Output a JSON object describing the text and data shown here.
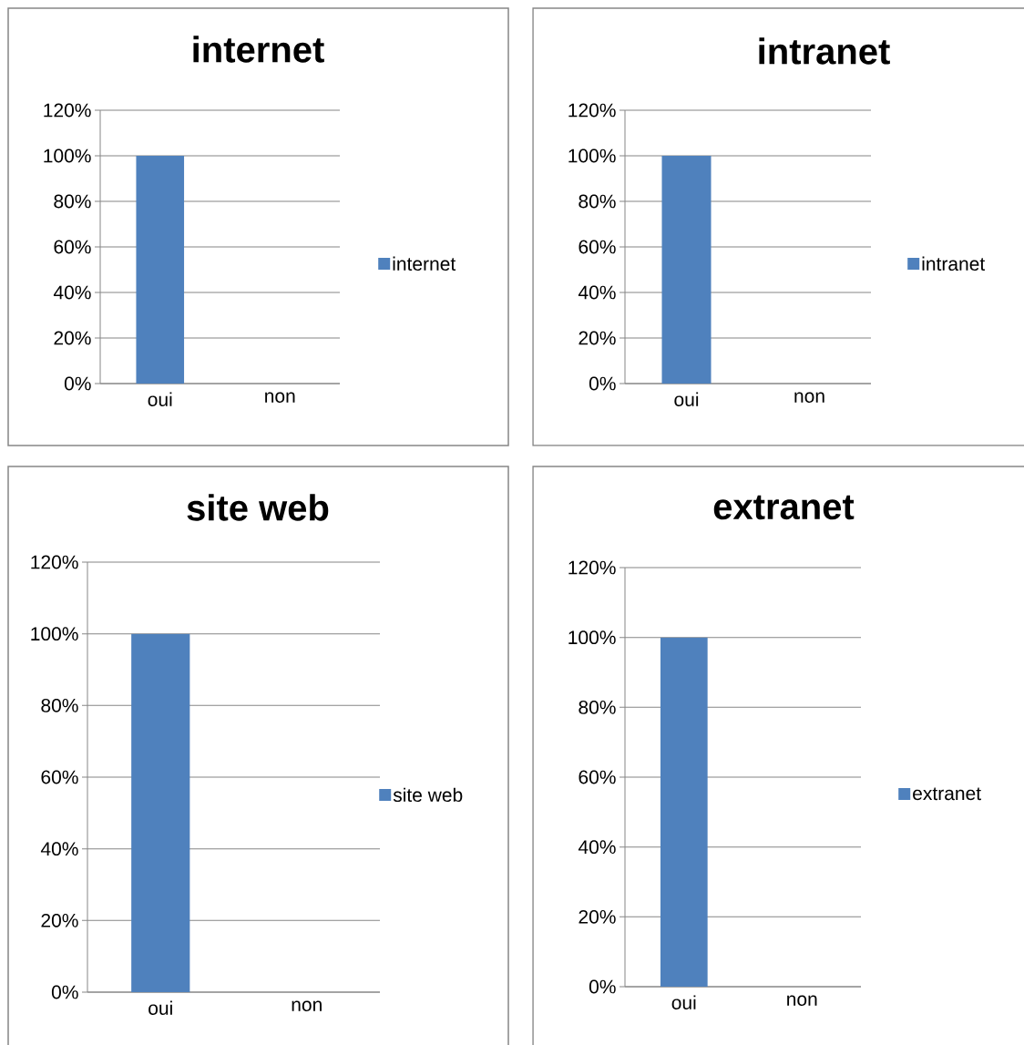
{
  "chart_data": [
    {
      "type": "bar",
      "title": "internet",
      "categories": [
        "oui",
        "non"
      ],
      "series": [
        {
          "name": "internet",
          "color": "#4f81bd",
          "values": [
            100,
            0
          ]
        }
      ],
      "ylim": [
        0,
        120
      ],
      "yticks": [
        {
          "value": 0,
          "label": "0%"
        },
        {
          "value": 20,
          "label": "20%"
        },
        {
          "value": 40,
          "label": "40%"
        },
        {
          "value": 60,
          "label": "60%"
        },
        {
          "value": 80,
          "label": "80%"
        },
        {
          "value": 100,
          "label": "100%"
        },
        {
          "value": 120,
          "label": "120%"
        }
      ],
      "grid": "y",
      "legend": "right"
    },
    {
      "type": "bar",
      "title": "intranet",
      "categories": [
        "oui",
        "non"
      ],
      "series": [
        {
          "name": "intranet",
          "color": "#4f81bd",
          "values": [
            100,
            0
          ]
        }
      ],
      "ylim": [
        0,
        120
      ],
      "yticks": [
        {
          "value": 0,
          "label": "0%"
        },
        {
          "value": 20,
          "label": "20%"
        },
        {
          "value": 40,
          "label": "40%"
        },
        {
          "value": 60,
          "label": "60%"
        },
        {
          "value": 80,
          "label": "80%"
        },
        {
          "value": 100,
          "label": "100%"
        },
        {
          "value": 120,
          "label": "120%"
        }
      ],
      "grid": "y",
      "legend": "right"
    },
    {
      "type": "bar",
      "title": "site web",
      "categories": [
        "oui",
        "non"
      ],
      "series": [
        {
          "name": "site web",
          "color": "#4f81bd",
          "values": [
            100,
            0
          ]
        }
      ],
      "ylim": [
        0,
        120
      ],
      "yticks": [
        {
          "value": 0,
          "label": "0%"
        },
        {
          "value": 20,
          "label": "20%"
        },
        {
          "value": 40,
          "label": "40%"
        },
        {
          "value": 60,
          "label": "60%"
        },
        {
          "value": 80,
          "label": "80%"
        },
        {
          "value": 100,
          "label": "100%"
        },
        {
          "value": 120,
          "label": "120%"
        }
      ],
      "grid": "y",
      "legend": "right"
    },
    {
      "type": "bar",
      "title": "extranet",
      "categories": [
        "oui",
        "non"
      ],
      "series": [
        {
          "name": "extranet",
          "color": "#4f81bd",
          "values": [
            100,
            0
          ]
        }
      ],
      "ylim": [
        0,
        120
      ],
      "yticks": [
        {
          "value": 0,
          "label": "0%"
        },
        {
          "value": 20,
          "label": "20%"
        },
        {
          "value": 40,
          "label": "40%"
        },
        {
          "value": 60,
          "label": "60%"
        },
        {
          "value": 80,
          "label": "80%"
        },
        {
          "value": 100,
          "label": "100%"
        },
        {
          "value": 120,
          "label": "120%"
        }
      ],
      "grid": "y",
      "legend": "right"
    }
  ]
}
